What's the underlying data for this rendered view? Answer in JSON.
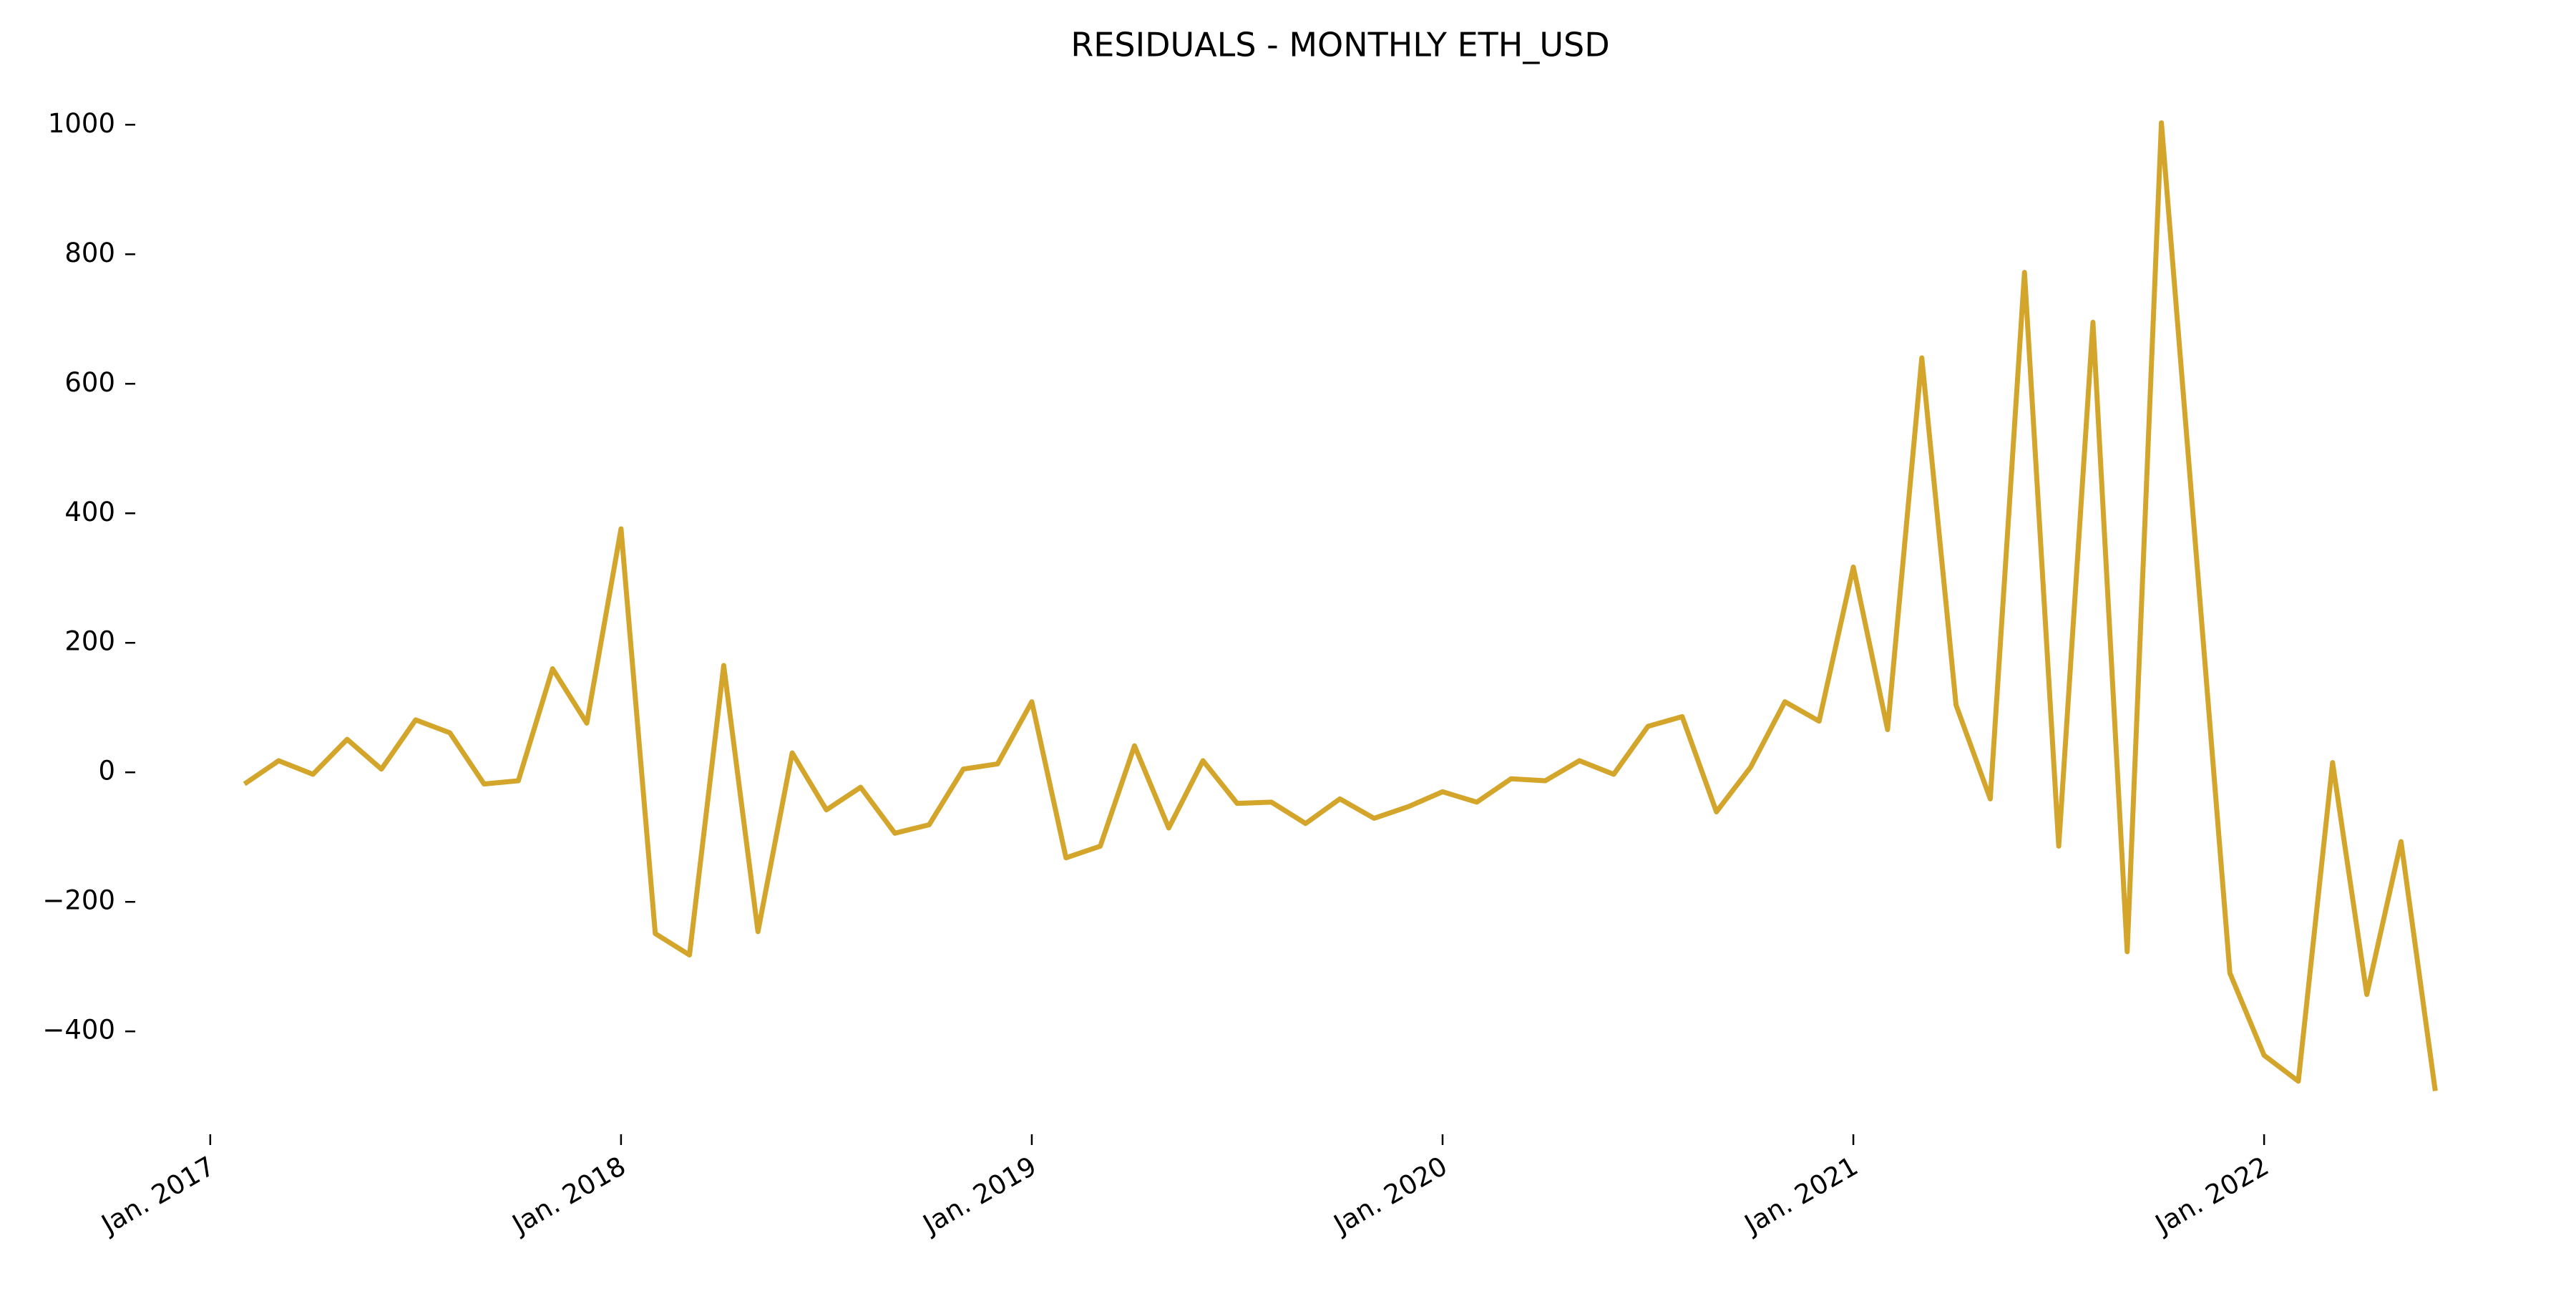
{
  "chart_data": {
    "type": "line",
    "title": "RESIDUALS - MONTHLY ETH_USD",
    "x": [
      "2017-02",
      "2017-03",
      "2017-04",
      "2017-05",
      "2017-06",
      "2017-07",
      "2017-08",
      "2017-09",
      "2017-10",
      "2017-11",
      "2017-12",
      "2018-01",
      "2018-02",
      "2018-03",
      "2018-04",
      "2018-05",
      "2018-06",
      "2018-07",
      "2018-08",
      "2018-09",
      "2018-10",
      "2018-11",
      "2018-12",
      "2019-01",
      "2019-02",
      "2019-03",
      "2019-04",
      "2019-05",
      "2019-06",
      "2019-07",
      "2019-08",
      "2019-09",
      "2019-10",
      "2019-11",
      "2019-12",
      "2020-01",
      "2020-02",
      "2020-03",
      "2020-04",
      "2020-05",
      "2020-06",
      "2020-07",
      "2020-08",
      "2020-09",
      "2020-10",
      "2020-11",
      "2020-12",
      "2021-01",
      "2021-02",
      "2021-03",
      "2021-04",
      "2021-05",
      "2021-06",
      "2021-07",
      "2021-08",
      "2021-09",
      "2021-10",
      "2021-11",
      "2021-12",
      "2022-01",
      "2022-02",
      "2022-03",
      "2022-04",
      "2022-05",
      "2022-06"
    ],
    "series": [
      {
        "name": "ETH_USD",
        "color": "#d4a52b",
        "values": [
          -18,
          18,
          -3,
          51,
          5,
          81,
          61,
          -18,
          -13,
          160,
          76,
          376,
          -249,
          -282,
          165,
          -246,
          30,
          -58,
          -23,
          -94,
          -81,
          5,
          13,
          109,
          -132,
          -114,
          41,
          -86,
          18,
          -48,
          -46,
          -79,
          -41,
          -71,
          -53,
          -30,
          -46,
          -10,
          -13,
          18,
          -3,
          71,
          86,
          -61,
          8,
          109,
          79,
          317,
          66,
          640,
          104,
          -41,
          772,
          -114,
          695,
          -277,
          1003,
          348,
          -310,
          -437,
          -477,
          15,
          -343,
          -107,
          -492
        ]
      }
    ],
    "xlim": [
      "2016-12",
      "2022-08"
    ],
    "xticks": [
      {
        "value": "2017-01",
        "label": "Jan. 2017"
      },
      {
        "value": "2018-01",
        "label": "Jan. 2018"
      },
      {
        "value": "2019-01",
        "label": "Jan. 2019"
      },
      {
        "value": "2020-01",
        "label": "Jan. 2020"
      },
      {
        "value": "2021-01",
        "label": "Jan. 2021"
      },
      {
        "value": "2022-01",
        "label": "Jan. 2022"
      }
    ],
    "ylim": [
      -560,
      1060
    ],
    "yticks": [
      {
        "value": -400,
        "label": "−400"
      },
      {
        "value": -200,
        "label": "−200"
      },
      0,
      200,
      400,
      600,
      800,
      1000
    ],
    "grid": false
  }
}
